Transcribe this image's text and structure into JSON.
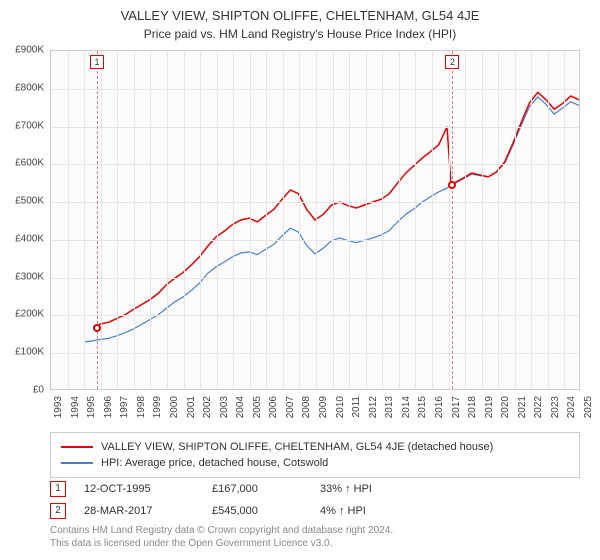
{
  "title": "VALLEY VIEW, SHIPTON OLIFFE, CHELTENHAM, GL54 4JE",
  "subtitle": "Price paid vs. HM Land Registry's House Price Index (HPI)",
  "chart": {
    "type": "line",
    "y_min": 0,
    "y_max": 900000,
    "y_ticks": [
      0,
      100000,
      200000,
      300000,
      400000,
      500000,
      600000,
      700000,
      800000,
      900000
    ],
    "y_tick_labels": [
      "£0",
      "£100K",
      "£200K",
      "£300K",
      "£400K",
      "£500K",
      "£600K",
      "£700K",
      "£800K",
      "£900K"
    ],
    "x_min": 1993,
    "x_max": 2025,
    "x_ticks": [
      1993,
      1994,
      1995,
      1996,
      1997,
      1998,
      1999,
      2000,
      2001,
      2002,
      2003,
      2004,
      2005,
      2006,
      2007,
      2008,
      2009,
      2010,
      2011,
      2012,
      2013,
      2014,
      2015,
      2016,
      2017,
      2018,
      2019,
      2020,
      2021,
      2022,
      2023,
      2024,
      2025
    ],
    "background_color": "#fbfbfb",
    "grid_color": "#e5e5e5",
    "border_color": "#cccccc",
    "series": [
      {
        "name": "property",
        "label": "VALLEY VIEW, SHIPTON OLIFFE, CHELTENHAM, GL54 4JE (detached house)",
        "color": "#e60000",
        "line_width": 1.5,
        "data": [
          [
            1995.78,
            167000
          ],
          [
            1996,
            173000
          ],
          [
            1996.5,
            178000
          ],
          [
            1997,
            188000
          ],
          [
            1997.5,
            198000
          ],
          [
            1998,
            212000
          ],
          [
            1998.5,
            225000
          ],
          [
            1999,
            238000
          ],
          [
            1999.5,
            255000
          ],
          [
            2000,
            278000
          ],
          [
            2000.5,
            295000
          ],
          [
            2001,
            310000
          ],
          [
            2001.5,
            330000
          ],
          [
            2002,
            352000
          ],
          [
            2002.5,
            380000
          ],
          [
            2003,
            405000
          ],
          [
            2003.5,
            420000
          ],
          [
            2004,
            438000
          ],
          [
            2004.5,
            450000
          ],
          [
            2005,
            455000
          ],
          [
            2005.5,
            445000
          ],
          [
            2006,
            462000
          ],
          [
            2006.5,
            478000
          ],
          [
            2007,
            505000
          ],
          [
            2007.5,
            530000
          ],
          [
            2008,
            520000
          ],
          [
            2008.5,
            478000
          ],
          [
            2009,
            450000
          ],
          [
            2009.5,
            465000
          ],
          [
            2010,
            490000
          ],
          [
            2010.5,
            498000
          ],
          [
            2011,
            488000
          ],
          [
            2011.5,
            482000
          ],
          [
            2012,
            490000
          ],
          [
            2012.5,
            498000
          ],
          [
            2013,
            505000
          ],
          [
            2013.5,
            520000
          ],
          [
            2014,
            548000
          ],
          [
            2014.5,
            575000
          ],
          [
            2015,
            595000
          ],
          [
            2015.5,
            615000
          ],
          [
            2016,
            632000
          ],
          [
            2016.5,
            650000
          ],
          [
            2017,
            698000
          ],
          [
            2017.24,
            545000
          ],
          [
            2017.5,
            550000
          ],
          [
            2018,
            562000
          ],
          [
            2018.5,
            575000
          ],
          [
            2019,
            570000
          ],
          [
            2019.5,
            565000
          ],
          [
            2020,
            578000
          ],
          [
            2020.5,
            605000
          ],
          [
            2021,
            655000
          ],
          [
            2021.5,
            710000
          ],
          [
            2022,
            762000
          ],
          [
            2022.5,
            790000
          ],
          [
            2023,
            770000
          ],
          [
            2023.5,
            745000
          ],
          [
            2024,
            760000
          ],
          [
            2024.5,
            780000
          ],
          [
            2025,
            770000
          ]
        ]
      },
      {
        "name": "hpi",
        "label": "HPI: Average price, detached house, Cotswold",
        "color": "#4a7ec9",
        "line_width": 1.2,
        "data": [
          [
            1995,
            125000
          ],
          [
            1995.5,
            128000
          ],
          [
            1996,
            132000
          ],
          [
            1996.5,
            135000
          ],
          [
            1997,
            142000
          ],
          [
            1997.5,
            150000
          ],
          [
            1998,
            160000
          ],
          [
            1998.5,
            172000
          ],
          [
            1999,
            185000
          ],
          [
            1999.5,
            198000
          ],
          [
            2000,
            215000
          ],
          [
            2000.5,
            232000
          ],
          [
            2001,
            245000
          ],
          [
            2001.5,
            262000
          ],
          [
            2002,
            282000
          ],
          [
            2002.5,
            308000
          ],
          [
            2003,
            325000
          ],
          [
            2003.5,
            338000
          ],
          [
            2004,
            352000
          ],
          [
            2004.5,
            362000
          ],
          [
            2005,
            365000
          ],
          [
            2005.5,
            358000
          ],
          [
            2006,
            372000
          ],
          [
            2006.5,
            385000
          ],
          [
            2007,
            408000
          ],
          [
            2007.5,
            428000
          ],
          [
            2008,
            418000
          ],
          [
            2008.5,
            382000
          ],
          [
            2009,
            360000
          ],
          [
            2009.5,
            375000
          ],
          [
            2010,
            395000
          ],
          [
            2010.5,
            402000
          ],
          [
            2011,
            395000
          ],
          [
            2011.5,
            390000
          ],
          [
            2012,
            396000
          ],
          [
            2012.5,
            402000
          ],
          [
            2013,
            410000
          ],
          [
            2013.5,
            422000
          ],
          [
            2014,
            445000
          ],
          [
            2014.5,
            465000
          ],
          [
            2015,
            480000
          ],
          [
            2015.5,
            498000
          ],
          [
            2016,
            512000
          ],
          [
            2016.5,
            525000
          ],
          [
            2017,
            535000
          ],
          [
            2017.5,
            548000
          ],
          [
            2018,
            560000
          ],
          [
            2018.5,
            572000
          ],
          [
            2019,
            568000
          ],
          [
            2019.5,
            565000
          ],
          [
            2020,
            578000
          ],
          [
            2020.5,
            602000
          ],
          [
            2021,
            650000
          ],
          [
            2021.5,
            702000
          ],
          [
            2022,
            752000
          ],
          [
            2022.5,
            778000
          ],
          [
            2023,
            758000
          ],
          [
            2023.5,
            732000
          ],
          [
            2024,
            748000
          ],
          [
            2024.5,
            765000
          ],
          [
            2025,
            755000
          ]
        ]
      }
    ],
    "markers": [
      {
        "id": "1",
        "x": 1995.78,
        "y": 167000,
        "color": "#e60000"
      },
      {
        "id": "2",
        "x": 2017.24,
        "y": 545000,
        "color": "#e60000"
      }
    ]
  },
  "transactions": [
    {
      "id": "1",
      "date": "12-OCT-1995",
      "price": "£167,000",
      "delta": "33% ↑ HPI",
      "color": "#e60000"
    },
    {
      "id": "2",
      "date": "28-MAR-2017",
      "price": "£545,000",
      "delta": "4% ↑ HPI",
      "color": "#e60000"
    }
  ],
  "footer": {
    "line1": "Contains HM Land Registry data © Crown copyright and database right 2024.",
    "line2": "This data is licensed under the Open Government Licence v3.0."
  }
}
